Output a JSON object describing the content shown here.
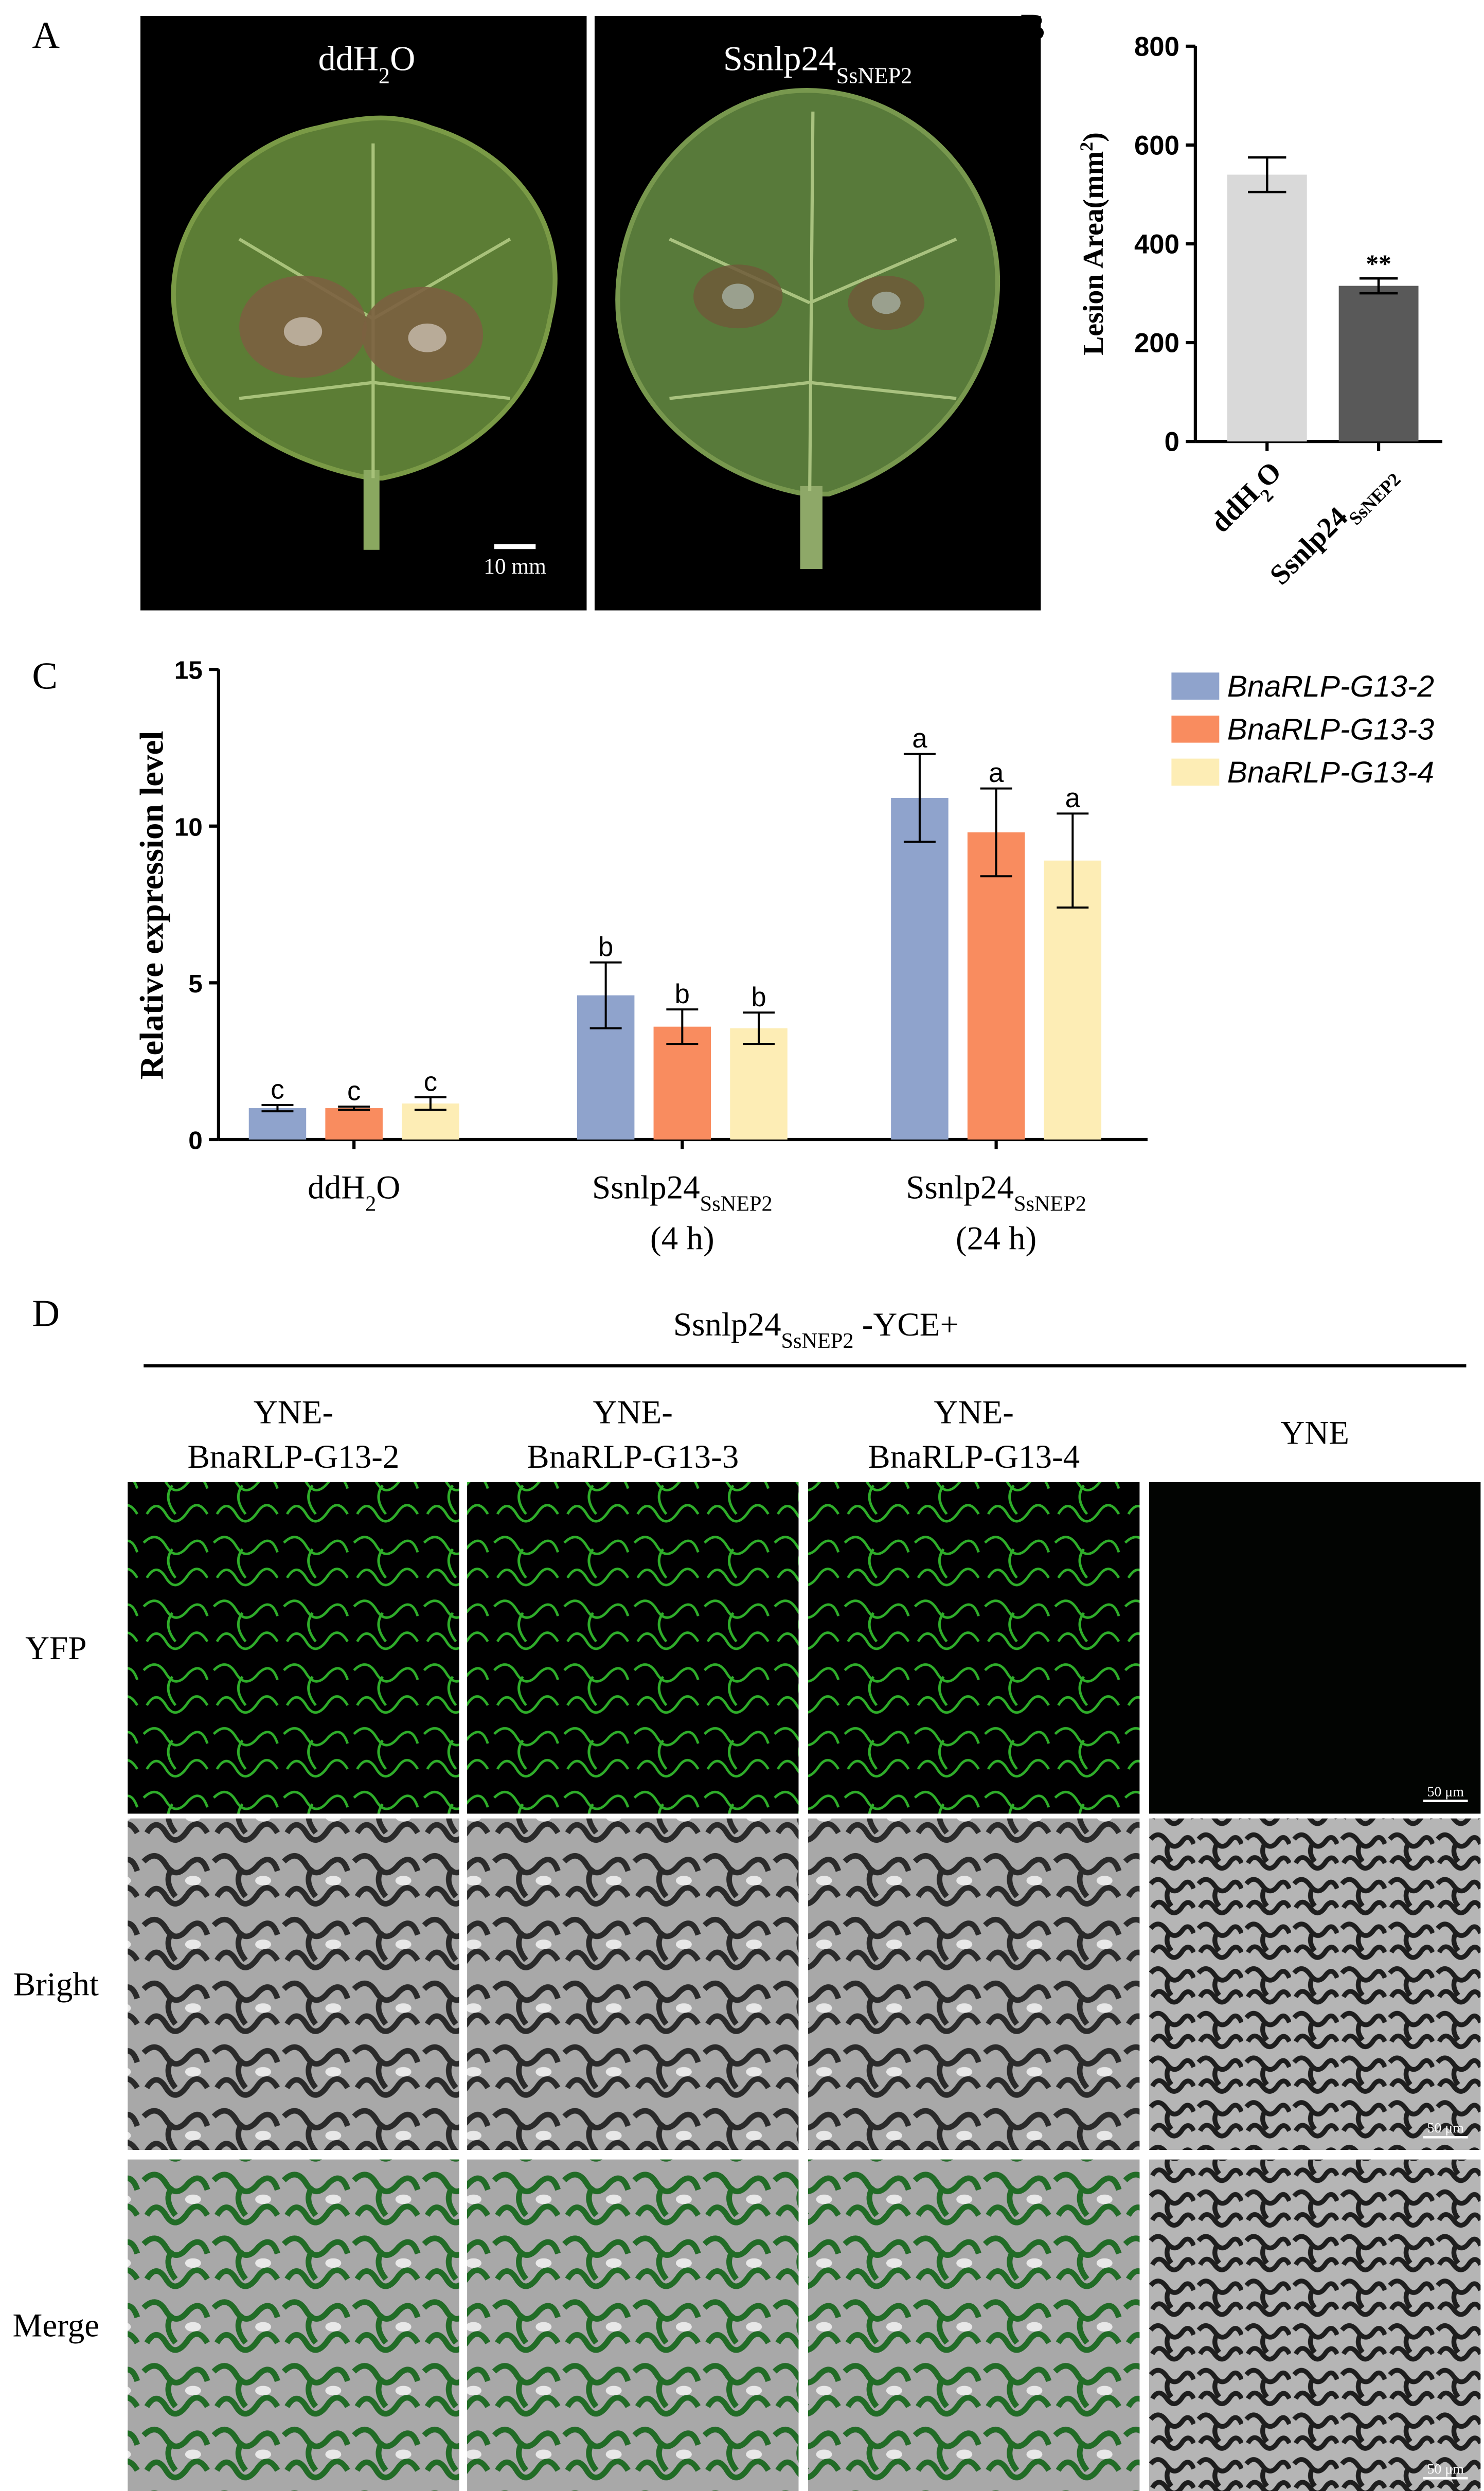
{
  "panel_labels": [
    "A",
    "B",
    "C",
    "D"
  ],
  "leaf_panel": {
    "labels": [
      [
        {
          "text": "ddH"
        },
        {
          "sub": "2"
        },
        {
          "text": "O"
        }
      ],
      [
        {
          "text": "Ssnlp24"
        },
        {
          "sub": "SsNEP2"
        }
      ]
    ],
    "scale_bar": "10 mm"
  },
  "chart_data": [
    {
      "type": "bar",
      "y_label": [
        {
          "text": "Lesion Area(mm"
        },
        {
          "sup": "2"
        },
        {
          "text": ")"
        }
      ],
      "categories": [
        [
          {
            "text": "ddH"
          },
          {
            "sub": "2"
          },
          {
            "text": "O"
          }
        ],
        [
          {
            "text": "Ssnlp24"
          },
          {
            "sub": "SsNEP2"
          }
        ]
      ],
      "values": [
        540,
        315
      ],
      "errors": [
        35,
        15
      ],
      "colors": [
        "#d9d9d9",
        "#595959"
      ],
      "annotations": [
        {
          "index": 1,
          "text": "**"
        }
      ],
      "ylim": [
        0,
        800
      ],
      "yticks": [
        0,
        200,
        400,
        600,
        800
      ]
    },
    {
      "type": "grouped_bar",
      "y_label": "Relative expression level",
      "categories": [
        [
          [
            {
              "text": "ddH"
            },
            {
              "sub": "2"
            },
            {
              "text": "O"
            }
          ]
        ],
        [
          [
            {
              "text": "Ssnlp24"
            },
            {
              "sub": "SsNEP2"
            }
          ],
          [
            {
              "text": "(4 h)"
            }
          ]
        ],
        [
          [
            {
              "text": "Ssnlp24"
            },
            {
              "sub": "SsNEP2"
            }
          ],
          [
            {
              "text": "(24 h)"
            }
          ]
        ]
      ],
      "series": [
        {
          "name": "BnaRLP-G13-2",
          "color": "#8fa3cc",
          "values": [
            1.0,
            4.6,
            10.9
          ],
          "errors": [
            0.1,
            1.05,
            1.4
          ],
          "letters": [
            "c",
            "b",
            "a"
          ]
        },
        {
          "name": "BnaRLP-G13-3",
          "color": "#f98c5f",
          "values": [
            1.0,
            3.6,
            9.8
          ],
          "errors": [
            0.05,
            0.55,
            1.4
          ],
          "letters": [
            "c",
            "b",
            "a"
          ]
        },
        {
          "name": "BnaRLP-G13-4",
          "color": "#fdedb5",
          "values": [
            1.15,
            3.55,
            8.9
          ],
          "errors": [
            0.2,
            0.5,
            1.5
          ],
          "letters": [
            "c",
            "b",
            "a"
          ]
        }
      ],
      "ylim": [
        0,
        15
      ],
      "yticks": [
        0,
        5,
        10,
        15
      ]
    }
  ],
  "microscopy": {
    "header": [
      {
        "text": "Ssnlp24"
      },
      {
        "sub": "SsNEP2"
      },
      {
        "text": " -YCE+"
      }
    ],
    "columns": [
      [
        "YNE-",
        "BnaRLP-G13-2"
      ],
      [
        "YNE-",
        "BnaRLP-G13-3"
      ],
      [
        "YNE-",
        "BnaRLP-G13-4"
      ],
      [
        "YNE"
      ]
    ],
    "rows": [
      "YFP",
      "Bright",
      "Merge"
    ],
    "scale_bar": "50 μm"
  }
}
